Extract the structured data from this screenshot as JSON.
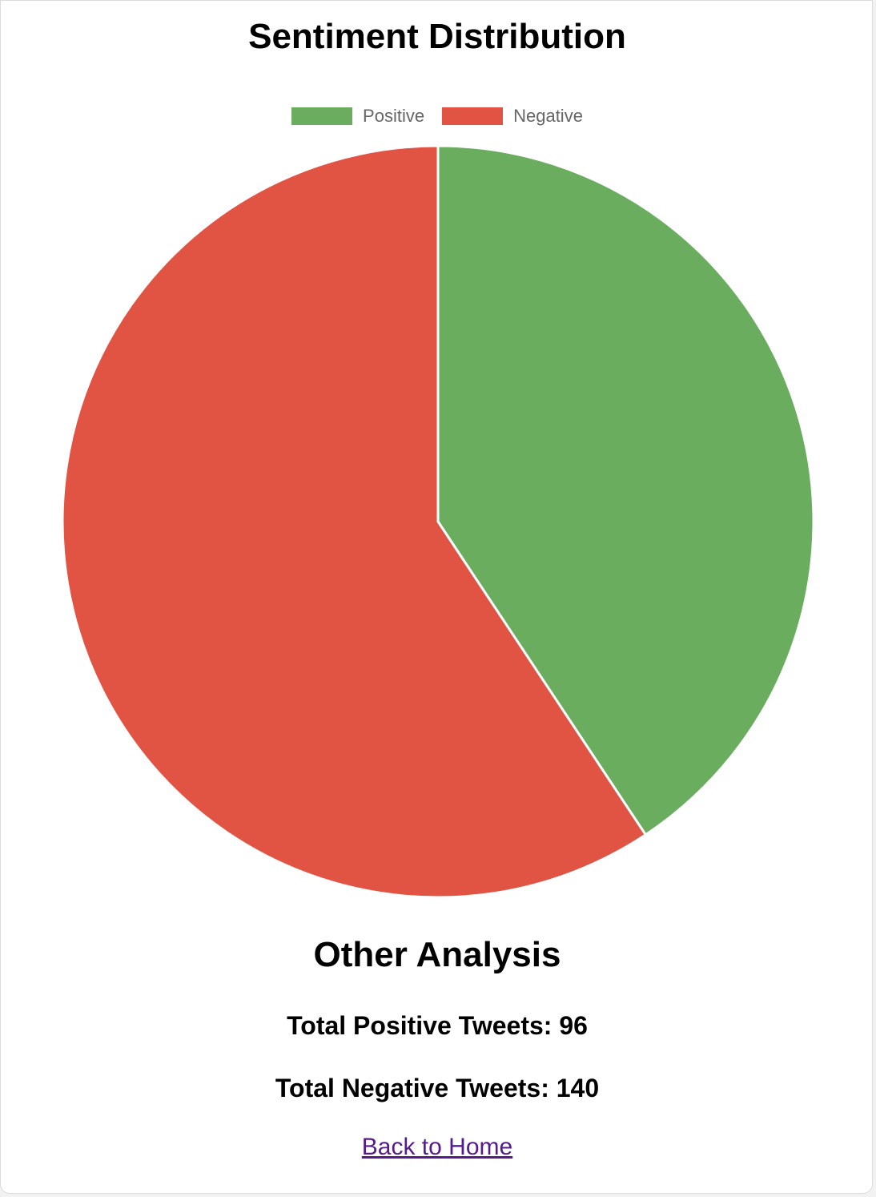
{
  "chart_data": {
    "type": "pie",
    "title": "Sentiment Distribution",
    "categories": [
      "Positive",
      "Negative"
    ],
    "values": [
      96,
      140
    ],
    "colors": [
      "#6aad5e",
      "#e15443"
    ],
    "legend": "top-center"
  },
  "analysis": {
    "title": "Other Analysis",
    "positive_label": "Total Positive Tweets:",
    "positive_value": "96",
    "negative_label": "Total Negative Tweets:",
    "negative_value": "140"
  },
  "links": {
    "back_home": "Back to Home"
  }
}
